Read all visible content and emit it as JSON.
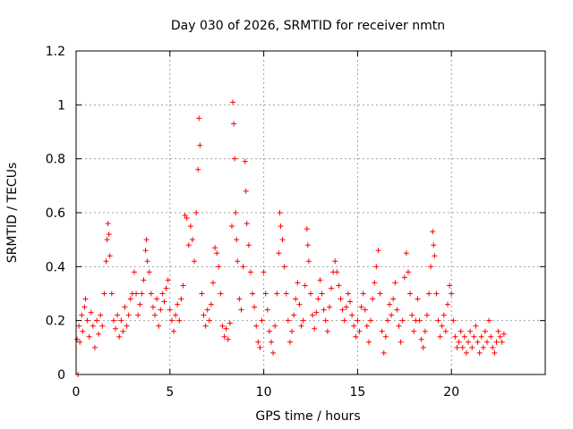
{
  "chart_data": {
    "type": "scatter",
    "title": "Day 030 of 2026, SRMTID for receiver nmtn",
    "xlabel": "GPS time / hours",
    "ylabel": "SRMTID / TECUs",
    "xlim": [
      0,
      25
    ],
    "ylim": [
      0,
      1.2
    ],
    "x_ticks": [
      0,
      5,
      10,
      15,
      20
    ],
    "x_tick_labels": [
      "0",
      "5",
      "10",
      "15",
      "20"
    ],
    "y_ticks": [
      0,
      0.2,
      0.4,
      0.6,
      0.8,
      1.0,
      1.2
    ],
    "y_tick_labels": [
      "0",
      "0.2",
      "0.4",
      "0.6",
      "0.8",
      "1",
      "1.2"
    ],
    "grid": true,
    "marker": "+",
    "series": [
      {
        "name": "SRMTID",
        "color": "#ff0000",
        "points": [
          [
            0.05,
            0.13
          ],
          [
            0.1,
            0.0
          ],
          [
            0.15,
            0.18
          ],
          [
            0.2,
            0.12
          ],
          [
            0.3,
            0.22
          ],
          [
            0.35,
            0.16
          ],
          [
            0.45,
            0.25
          ],
          [
            0.5,
            0.28
          ],
          [
            0.6,
            0.2
          ],
          [
            0.7,
            0.14
          ],
          [
            0.8,
            0.23
          ],
          [
            0.9,
            0.18
          ],
          [
            1.0,
            0.1
          ],
          [
            1.1,
            0.2
          ],
          [
            1.2,
            0.15
          ],
          [
            1.3,
            0.22
          ],
          [
            1.4,
            0.18
          ],
          [
            1.5,
            0.3
          ],
          [
            1.6,
            0.42
          ],
          [
            1.65,
            0.5
          ],
          [
            1.7,
            0.56
          ],
          [
            1.75,
            0.52
          ],
          [
            1.8,
            0.44
          ],
          [
            1.9,
            0.3
          ],
          [
            2.0,
            0.2
          ],
          [
            2.1,
            0.17
          ],
          [
            2.2,
            0.22
          ],
          [
            2.3,
            0.14
          ],
          [
            2.4,
            0.2
          ],
          [
            2.5,
            0.16
          ],
          [
            2.6,
            0.25
          ],
          [
            2.7,
            0.18
          ],
          [
            2.8,
            0.22
          ],
          [
            2.9,
            0.28
          ],
          [
            3.0,
            0.3
          ],
          [
            3.1,
            0.38
          ],
          [
            3.2,
            0.3
          ],
          [
            3.3,
            0.22
          ],
          [
            3.4,
            0.26
          ],
          [
            3.5,
            0.3
          ],
          [
            3.6,
            0.35
          ],
          [
            3.7,
            0.46
          ],
          [
            3.75,
            0.5
          ],
          [
            3.8,
            0.42
          ],
          [
            3.9,
            0.38
          ],
          [
            4.0,
            0.3
          ],
          [
            4.1,
            0.25
          ],
          [
            4.2,
            0.22
          ],
          [
            4.3,
            0.28
          ],
          [
            4.4,
            0.18
          ],
          [
            4.5,
            0.24
          ],
          [
            4.6,
            0.3
          ],
          [
            4.7,
            0.27
          ],
          [
            4.8,
            0.32
          ],
          [
            4.9,
            0.35
          ],
          [
            5.0,
            0.24
          ],
          [
            5.1,
            0.2
          ],
          [
            5.2,
            0.16
          ],
          [
            5.3,
            0.22
          ],
          [
            5.4,
            0.26
          ],
          [
            5.5,
            0.2
          ],
          [
            5.6,
            0.28
          ],
          [
            5.7,
            0.33
          ],
          [
            5.8,
            0.59
          ],
          [
            5.9,
            0.58
          ],
          [
            6.0,
            0.48
          ],
          [
            6.1,
            0.55
          ],
          [
            6.2,
            0.5
          ],
          [
            6.3,
            0.42
          ],
          [
            6.4,
            0.6
          ],
          [
            6.5,
            0.76
          ],
          [
            6.55,
            0.95
          ],
          [
            6.6,
            0.85
          ],
          [
            6.7,
            0.3
          ],
          [
            6.8,
            0.22
          ],
          [
            6.9,
            0.18
          ],
          [
            7.0,
            0.24
          ],
          [
            7.1,
            0.2
          ],
          [
            7.2,
            0.26
          ],
          [
            7.3,
            0.34
          ],
          [
            7.4,
            0.47
          ],
          [
            7.5,
            0.45
          ],
          [
            7.6,
            0.4
          ],
          [
            7.7,
            0.3
          ],
          [
            7.8,
            0.18
          ],
          [
            7.9,
            0.14
          ],
          [
            8.0,
            0.17
          ],
          [
            8.1,
            0.13
          ],
          [
            8.2,
            0.19
          ],
          [
            8.3,
            0.55
          ],
          [
            8.35,
            1.01
          ],
          [
            8.4,
            0.93
          ],
          [
            8.45,
            0.8
          ],
          [
            8.5,
            0.6
          ],
          [
            8.55,
            0.5
          ],
          [
            8.6,
            0.42
          ],
          [
            8.7,
            0.28
          ],
          [
            8.8,
            0.24
          ],
          [
            8.9,
            0.4
          ],
          [
            9.0,
            0.79
          ],
          [
            9.05,
            0.68
          ],
          [
            9.1,
            0.56
          ],
          [
            9.2,
            0.48
          ],
          [
            9.3,
            0.38
          ],
          [
            9.4,
            0.3
          ],
          [
            9.5,
            0.25
          ],
          [
            9.6,
            0.18
          ],
          [
            9.7,
            0.12
          ],
          [
            9.8,
            0.1
          ],
          [
            9.9,
            0.2
          ],
          [
            10.0,
            0.38
          ],
          [
            10.1,
            0.3
          ],
          [
            10.2,
            0.24
          ],
          [
            10.3,
            0.16
          ],
          [
            10.4,
            0.12
          ],
          [
            10.5,
            0.08
          ],
          [
            10.6,
            0.18
          ],
          [
            10.7,
            0.3
          ],
          [
            10.8,
            0.45
          ],
          [
            10.85,
            0.6
          ],
          [
            10.9,
            0.55
          ],
          [
            11.0,
            0.5
          ],
          [
            11.1,
            0.4
          ],
          [
            11.2,
            0.3
          ],
          [
            11.3,
            0.2
          ],
          [
            11.4,
            0.12
          ],
          [
            11.5,
            0.16
          ],
          [
            11.6,
            0.22
          ],
          [
            11.7,
            0.28
          ],
          [
            11.8,
            0.34
          ],
          [
            11.9,
            0.26
          ],
          [
            12.0,
            0.18
          ],
          [
            12.1,
            0.2
          ],
          [
            12.2,
            0.33
          ],
          [
            12.3,
            0.54
          ],
          [
            12.35,
            0.48
          ],
          [
            12.4,
            0.42
          ],
          [
            12.5,
            0.3
          ],
          [
            12.6,
            0.22
          ],
          [
            12.7,
            0.17
          ],
          [
            12.8,
            0.23
          ],
          [
            12.9,
            0.28
          ],
          [
            13.0,
            0.35
          ],
          [
            13.1,
            0.3
          ],
          [
            13.2,
            0.24
          ],
          [
            13.3,
            0.2
          ],
          [
            13.4,
            0.16
          ],
          [
            13.5,
            0.25
          ],
          [
            13.6,
            0.32
          ],
          [
            13.7,
            0.38
          ],
          [
            13.8,
            0.42
          ],
          [
            13.9,
            0.38
          ],
          [
            14.0,
            0.33
          ],
          [
            14.1,
            0.28
          ],
          [
            14.2,
            0.24
          ],
          [
            14.3,
            0.2
          ],
          [
            14.4,
            0.25
          ],
          [
            14.5,
            0.3
          ],
          [
            14.6,
            0.27
          ],
          [
            14.7,
            0.22
          ],
          [
            14.8,
            0.18
          ],
          [
            14.9,
            0.14
          ],
          [
            15.0,
            0.2
          ],
          [
            15.1,
            0.16
          ],
          [
            15.2,
            0.25
          ],
          [
            15.3,
            0.3
          ],
          [
            15.4,
            0.24
          ],
          [
            15.5,
            0.18
          ],
          [
            15.6,
            0.12
          ],
          [
            15.7,
            0.2
          ],
          [
            15.8,
            0.28
          ],
          [
            15.9,
            0.34
          ],
          [
            16.0,
            0.4
          ],
          [
            16.1,
            0.46
          ],
          [
            16.2,
            0.3
          ],
          [
            16.3,
            0.16
          ],
          [
            16.4,
            0.08
          ],
          [
            16.5,
            0.14
          ],
          [
            16.6,
            0.2
          ],
          [
            16.7,
            0.26
          ],
          [
            16.8,
            0.22
          ],
          [
            16.9,
            0.28
          ],
          [
            17.0,
            0.34
          ],
          [
            17.1,
            0.24
          ],
          [
            17.2,
            0.18
          ],
          [
            17.3,
            0.12
          ],
          [
            17.4,
            0.2
          ],
          [
            17.5,
            0.36
          ],
          [
            17.6,
            0.45
          ],
          [
            17.7,
            0.38
          ],
          [
            17.8,
            0.3
          ],
          [
            17.9,
            0.22
          ],
          [
            18.0,
            0.16
          ],
          [
            18.1,
            0.2
          ],
          [
            18.2,
            0.28
          ],
          [
            18.3,
            0.2
          ],
          [
            18.4,
            0.13
          ],
          [
            18.5,
            0.1
          ],
          [
            18.6,
            0.16
          ],
          [
            18.7,
            0.22
          ],
          [
            18.8,
            0.3
          ],
          [
            18.9,
            0.4
          ],
          [
            19.0,
            0.53
          ],
          [
            19.05,
            0.48
          ],
          [
            19.1,
            0.44
          ],
          [
            19.2,
            0.3
          ],
          [
            19.3,
            0.2
          ],
          [
            19.4,
            0.14
          ],
          [
            19.5,
            0.18
          ],
          [
            19.6,
            0.22
          ],
          [
            19.7,
            0.16
          ],
          [
            19.8,
            0.26
          ],
          [
            19.9,
            0.33
          ],
          [
            20.0,
            0.3
          ],
          [
            20.1,
            0.2
          ],
          [
            20.2,
            0.14
          ],
          [
            20.3,
            0.1
          ],
          [
            20.4,
            0.12
          ],
          [
            20.5,
            0.16
          ],
          [
            20.6,
            0.1
          ],
          [
            20.7,
            0.14
          ],
          [
            20.8,
            0.08
          ],
          [
            20.9,
            0.12
          ],
          [
            21.0,
            0.16
          ],
          [
            21.1,
            0.1
          ],
          [
            21.2,
            0.14
          ],
          [
            21.3,
            0.18
          ],
          [
            21.4,
            0.12
          ],
          [
            21.5,
            0.08
          ],
          [
            21.6,
            0.14
          ],
          [
            21.7,
            0.1
          ],
          [
            21.8,
            0.16
          ],
          [
            21.9,
            0.12
          ],
          [
            22.0,
            0.2
          ],
          [
            22.1,
            0.14
          ],
          [
            22.2,
            0.1
          ],
          [
            22.3,
            0.08
          ],
          [
            22.4,
            0.12
          ],
          [
            22.5,
            0.16
          ],
          [
            22.6,
            0.14
          ],
          [
            22.7,
            0.12
          ],
          [
            22.8,
            0.15
          ]
        ]
      }
    ]
  }
}
